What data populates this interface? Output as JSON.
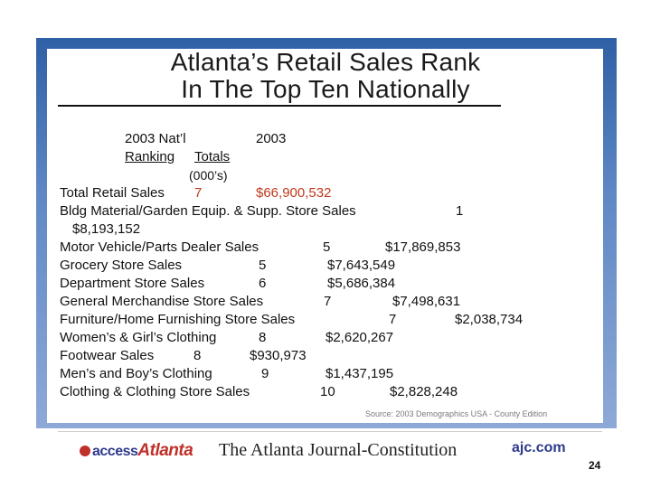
{
  "title": {
    "line1": "Atlanta’s Retail Sales Rank",
    "line2": "In The Top Ten Nationally"
  },
  "header": {
    "col1_line1": "2003 Nat’l",
    "col2_line1": "2003",
    "col1_line2": "Ranking",
    "col2_line2": "Totals",
    "units": "(000’s)"
  },
  "rows": [
    {
      "label": "Total Retail Sales",
      "rank": "7",
      "total": "$66,900,532"
    },
    {
      "label": "Bldg Material/Garden Equip. & Supp. Store Sales",
      "rank": "1",
      "total": "$8,193,152"
    },
    {
      "label": "Motor Vehicle/Parts Dealer Sales",
      "rank": "5",
      "total": "$17,869,853"
    },
    {
      "label": "Grocery Store Sales",
      "rank": "5",
      "total": "$7,643,549"
    },
    {
      "label": "Department Store Sales",
      "rank": "6",
      "total": "$5,686,384"
    },
    {
      "label": "General Merchandise Store Sales",
      "rank": "7",
      "total": "$7,498,631"
    },
    {
      "label": "Furniture/Home Furnishing Store Sales",
      "rank": "7",
      "total": "$2,038,734"
    },
    {
      "label": "Women’s & Girl’s Clothing",
      "rank": "8",
      "total": "$2,620,267"
    },
    {
      "label": "Footwear Sales",
      "rank": "8",
      "total": "$930,973"
    },
    {
      "label": "Men’s and Boy’s Clothing",
      "rank": "9",
      "total": "$1,437,195"
    },
    {
      "label": "Clothing & Clothing Store Sales",
      "rank": "10",
      "total": "$2,828,248"
    }
  ],
  "source": "Source: 2003 Demographics USA - County Edition",
  "footer": {
    "access_prefix": "access",
    "access_name": "Atlanta",
    "paper_name": "The Atlanta Journal-Constitution",
    "site": "ajc.com",
    "page_number": "24"
  },
  "colors": {
    "frame_blue": "#2f5fa5",
    "highlight_red": "#c0391b",
    "logo_blue": "#2d3a8c"
  }
}
